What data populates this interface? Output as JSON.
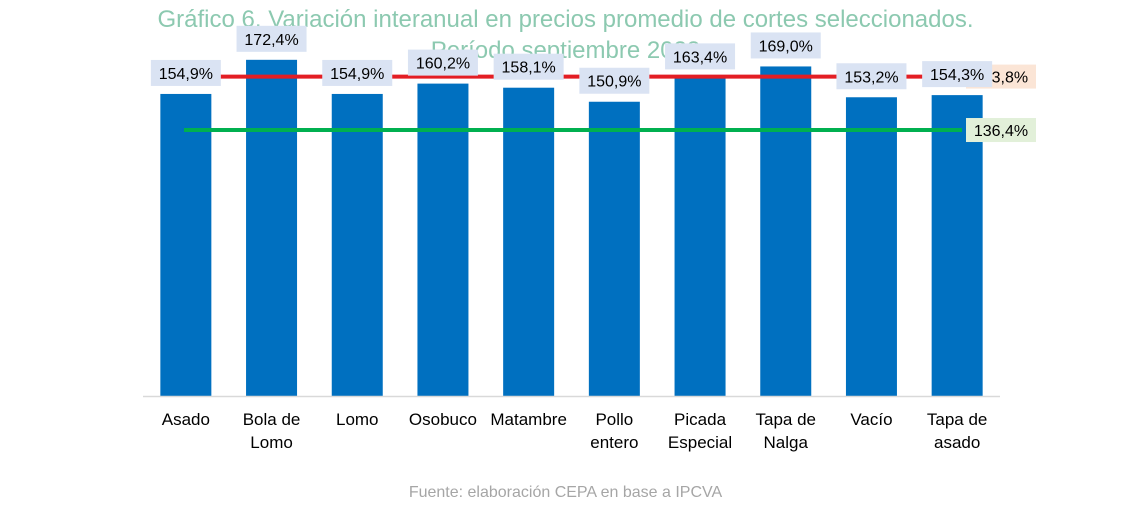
{
  "chart_data": {
    "type": "bar",
    "title": "Gráfico 6. Variación interanual en precios promedio de cortes seleccionados.",
    "subtitle": "Período septiembre 2023",
    "categories": [
      [
        "Asado"
      ],
      [
        "Bola de",
        "Lomo"
      ],
      [
        "Lomo"
      ],
      [
        "Osobuco"
      ],
      [
        "Matambre"
      ],
      [
        "Pollo",
        "entero"
      ],
      [
        "Picada",
        "Especial"
      ],
      [
        "Tapa de",
        "Nalga"
      ],
      [
        "Vacío"
      ],
      [
        "Tapa de",
        "asado"
      ]
    ],
    "values": [
      154.9,
      172.4,
      154.9,
      160.2,
      158.1,
      150.9,
      163.4,
      169.0,
      153.2,
      154.3
    ],
    "value_labels": [
      "154,9%",
      "172,4%",
      "154,9%",
      "160,2%",
      "158,1%",
      "150,9%",
      "163,4%",
      "169,0%",
      "153,2%",
      "154,3%"
    ],
    "ylim": [
      0,
      180
    ],
    "grid": false,
    "reference_lines": [
      {
        "value": 163.8,
        "label": "163,8%",
        "color": "#e31e24",
        "label_bg": "#fbe5d6"
      },
      {
        "value": 136.4,
        "label": "136,4%",
        "color": "#00b050",
        "label_bg": "#e2f0d9"
      }
    ],
    "colors": {
      "bar": "#0070c0",
      "label_bg": "#dae3f3",
      "axis": "#d9d9d9"
    }
  },
  "source": "Fuente: elaboración CEPA en base a IPCVA"
}
